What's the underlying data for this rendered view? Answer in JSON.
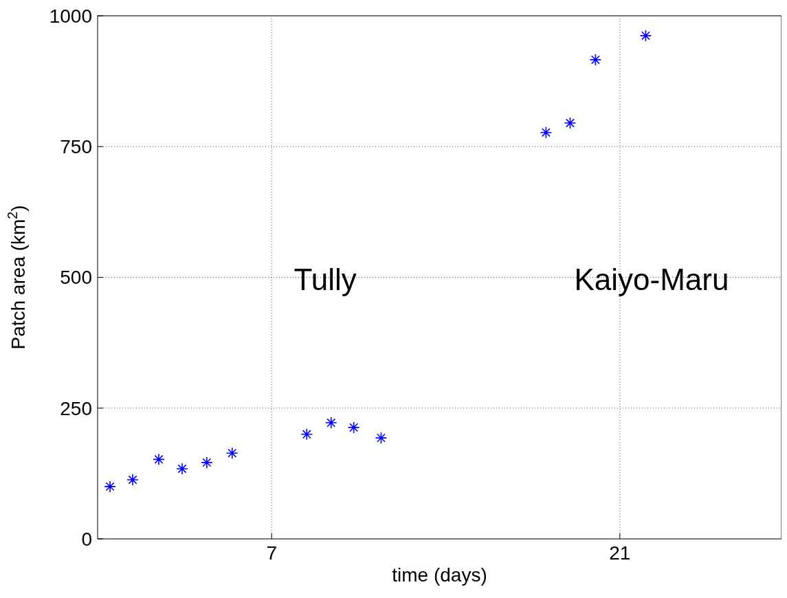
{
  "chart_data": {
    "type": "scatter",
    "xlabel": "time (days)",
    "ylabel": "Patch area (km$^{2}$)",
    "xlim": [
      0,
      27.5
    ],
    "xticks": [
      7,
      21
    ],
    "ylim": [
      0,
      1000
    ],
    "yticks": [
      0,
      250,
      500,
      750,
      1000
    ],
    "grid": true,
    "marker": "cross",
    "series": [
      {
        "color": "#0000ff",
        "x": [
          0.5,
          1.41,
          2.46,
          3.4,
          4.39,
          5.41,
          8.41,
          9.39,
          10.3,
          11.4,
          18.03,
          19.0,
          20.02,
          22.04
        ],
        "values": [
          100,
          113,
          152,
          134,
          146,
          164,
          200,
          222,
          213,
          193,
          777,
          795,
          916,
          962
        ]
      }
    ],
    "annotations": [
      "Tully",
      "Kaiyo-Maru"
    ]
  }
}
